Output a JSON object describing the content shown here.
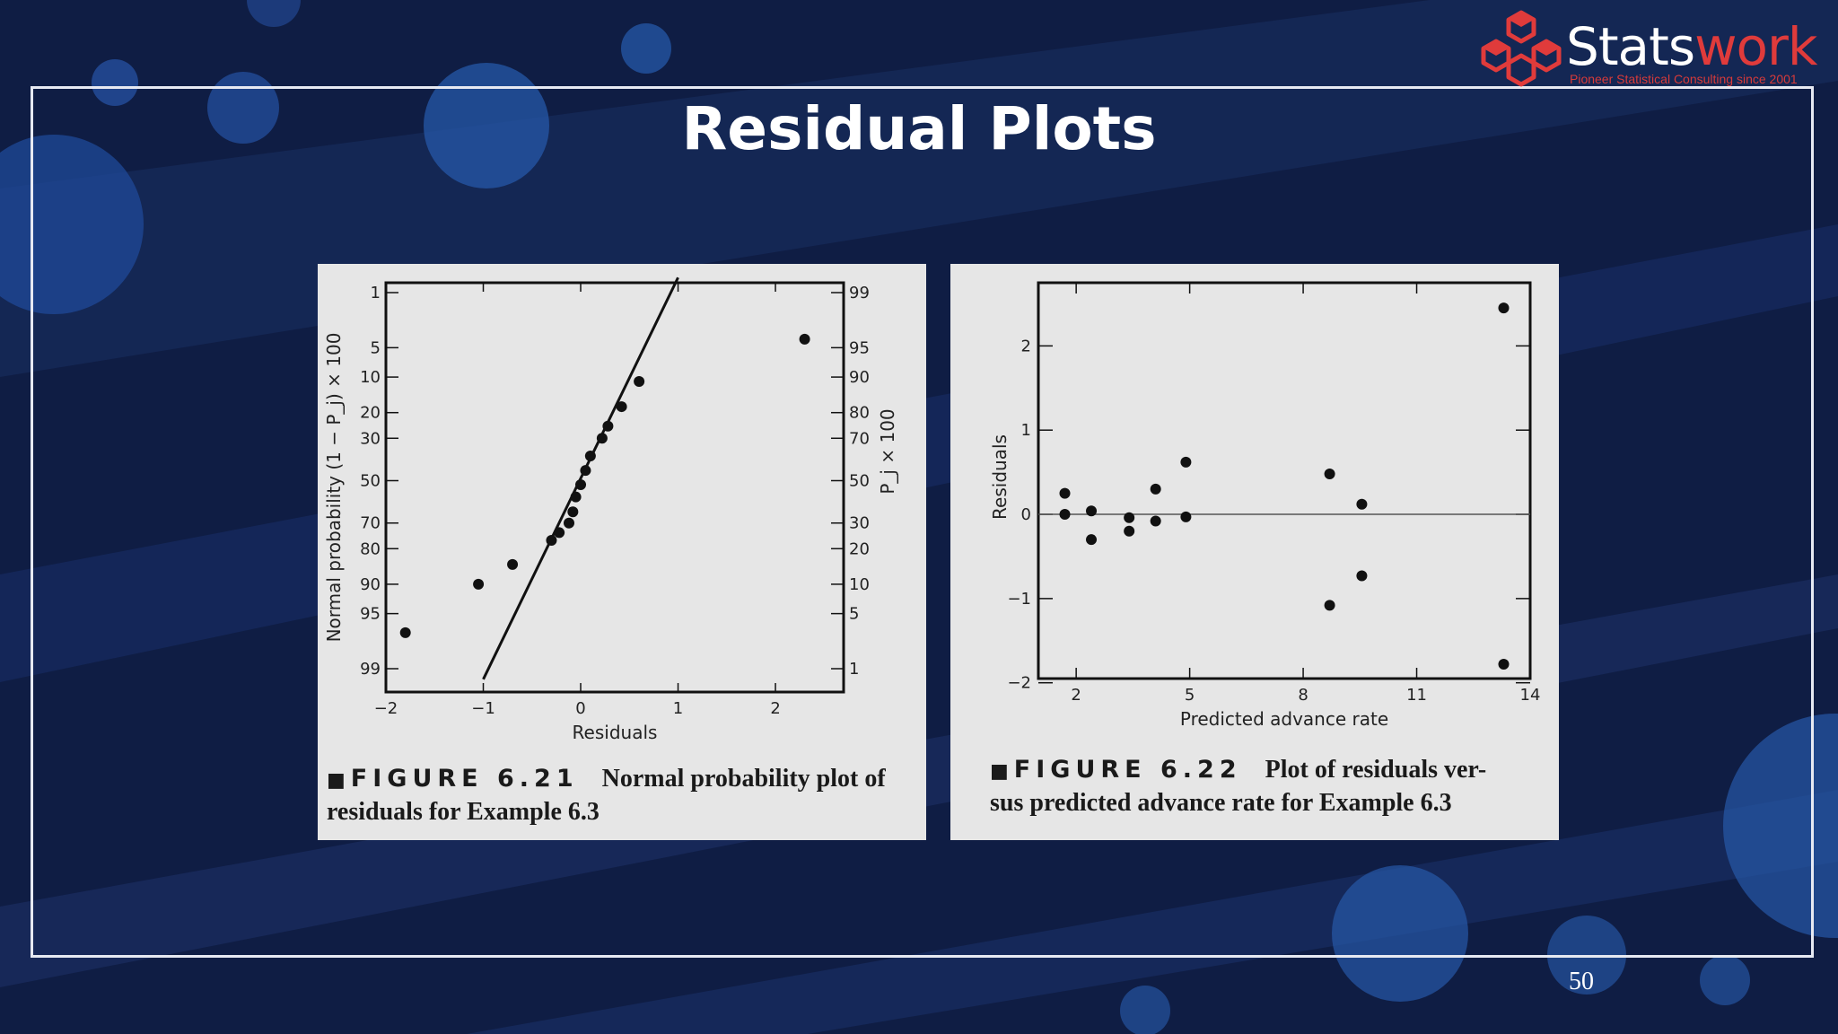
{
  "slide": {
    "title": "Residual Plots",
    "page_number": "50"
  },
  "logo": {
    "name_part1": "Stats",
    "name_part2": "work",
    "tagline": "Pioneer Statistical Consulting since 2001",
    "brand_color": "#e03b3b"
  },
  "colors": {
    "background": "#0f1d44",
    "panel": "#e6e6e6",
    "ink": "#111111"
  },
  "figure_left": {
    "caption_label": "FIGURE 6.21",
    "caption_text_line1": "Normal probability plot of",
    "caption_text_line2": "residuals for Example 6.3"
  },
  "figure_right": {
    "caption_label": "FIGURE 6.22",
    "caption_text_line1": "Plot of residuals ver-",
    "caption_text_line2": "sus predicted advance rate for Example 6.3"
  },
  "chart_data": [
    {
      "type": "scatter",
      "xlabel": "Residuals",
      "ylabel": "Normal probability (1 − P_j) × 100",
      "ylabel_right": "P_j × 100",
      "xlim": [
        -2,
        2.7
      ],
      "xticks": [
        -2,
        -1,
        0,
        1,
        2
      ],
      "xtick_labels": [
        "−2",
        "−1",
        "0",
        "1",
        "2"
      ],
      "y_scale": "normal probability",
      "yticks_left": [
        1,
        5,
        10,
        20,
        30,
        50,
        70,
        80,
        90,
        95,
        99
      ],
      "yticks_right": [
        99,
        95,
        90,
        80,
        70,
        50,
        30,
        20,
        10,
        5,
        1
      ],
      "points": [
        {
          "x": -1.8,
          "y": 97
        },
        {
          "x": -1.05,
          "y": 90
        },
        {
          "x": -0.7,
          "y": 85
        },
        {
          "x": -0.3,
          "y": 77
        },
        {
          "x": -0.22,
          "y": 74
        },
        {
          "x": -0.12,
          "y": 70
        },
        {
          "x": -0.08,
          "y": 65
        },
        {
          "x": -0.05,
          "y": 58
        },
        {
          "x": 0.0,
          "y": 52
        },
        {
          "x": 0.05,
          "y": 45
        },
        {
          "x": 0.1,
          "y": 38
        },
        {
          "x": 0.22,
          "y": 30
        },
        {
          "x": 0.28,
          "y": 25
        },
        {
          "x": 0.42,
          "y": 18
        },
        {
          "x": 0.6,
          "y": 11
        },
        {
          "x": 2.3,
          "y": 4
        }
      ],
      "fit_line": [
        {
          "x": -1.0,
          "y": 99.3
        },
        {
          "x": 1.0,
          "y": 0.6
        }
      ],
      "grid": false
    },
    {
      "type": "scatter",
      "xlabel": "Predicted advance rate",
      "ylabel": "Residuals",
      "xlim": [
        1.0,
        14.0
      ],
      "ylim": [
        -1.95,
        2.75
      ],
      "xticks": [
        2,
        5,
        8,
        11,
        14
      ],
      "xtick_labels": [
        "2",
        "5",
        "8",
        "11",
        "14"
      ],
      "yticks": [
        -2,
        -1,
        0,
        1,
        2
      ],
      "ytick_labels": [
        "−2",
        "−1",
        "0",
        "1",
        "2"
      ],
      "reference_line_y": 0,
      "points": [
        {
          "x": 1.7,
          "y": 0.25
        },
        {
          "x": 1.7,
          "y": 0.0
        },
        {
          "x": 2.4,
          "y": 0.04
        },
        {
          "x": 2.4,
          "y": -0.3
        },
        {
          "x": 3.4,
          "y": -0.04
        },
        {
          "x": 3.4,
          "y": -0.2
        },
        {
          "x": 4.1,
          "y": 0.3
        },
        {
          "x": 4.1,
          "y": -0.08
        },
        {
          "x": 4.9,
          "y": 0.62
        },
        {
          "x": 4.9,
          "y": -0.03
        },
        {
          "x": 8.7,
          "y": 0.48
        },
        {
          "x": 8.7,
          "y": -1.08
        },
        {
          "x": 9.55,
          "y": 0.12
        },
        {
          "x": 9.55,
          "y": -0.73
        },
        {
          "x": 13.3,
          "y": 2.45
        },
        {
          "x": 13.3,
          "y": -1.78
        }
      ],
      "grid": false
    }
  ]
}
